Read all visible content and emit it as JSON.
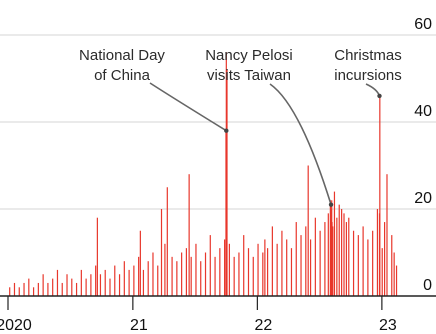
{
  "title": "",
  "chart_data": {
    "type": "bar",
    "title": "",
    "xlabel": "",
    "ylabel": "",
    "x_range": [
      "2020-01-01",
      "2023-03-01"
    ],
    "ylim": [
      0,
      60
    ],
    "y_ticks": [
      0,
      20,
      40,
      60
    ],
    "x_ticks": [
      {
        "label": "2020",
        "date": "2020-01-01"
      },
      {
        "label": "21",
        "date": "2021-01-01"
      },
      {
        "label": "22",
        "date": "2022-01-01"
      },
      {
        "label": "23",
        "date": "2023-01-01"
      }
    ],
    "grid": true,
    "colors": {
      "bar": "#e8372c",
      "grid": "#d4d4d4",
      "axis": "#222222",
      "annotation": "#666666"
    },
    "series": [
      {
        "x": [
          "2020-01-06",
          "2020-01-20",
          "2020-02-03",
          "2020-02-17",
          "2020-03-02",
          "2020-03-16",
          "2020-03-30",
          "2020-04-13",
          "2020-04-27",
          "2020-05-11",
          "2020-05-25",
          "2020-06-08",
          "2020-06-22",
          "2020-07-06",
          "2020-07-20",
          "2020-08-03",
          "2020-08-17",
          "2020-08-31",
          "2020-09-14",
          "2020-09-19",
          "2020-09-28",
          "2020-10-12",
          "2020-10-26",
          "2020-11-09",
          "2020-11-23",
          "2020-12-07",
          "2020-12-21",
          "2021-01-04",
          "2021-01-18",
          "2021-01-23",
          "2021-02-01",
          "2021-02-15",
          "2021-03-01",
          "2021-03-15",
          "2021-03-26",
          "2021-04-05",
          "2021-04-12",
          "2021-04-26",
          "2021-05-10",
          "2021-05-24",
          "2021-06-07",
          "2021-06-15",
          "2021-06-21",
          "2021-07-05",
          "2021-07-19",
          "2021-08-02",
          "2021-08-16",
          "2021-08-30",
          "2021-09-13",
          "2021-09-27",
          "2021-10-01",
          "2021-10-02",
          "2021-10-03",
          "2021-10-04",
          "2021-10-11",
          "2021-10-25",
          "2021-11-08",
          "2021-11-22",
          "2021-12-06",
          "2021-12-20",
          "2022-01-03",
          "2022-01-17",
          "2022-01-23",
          "2022-01-31",
          "2022-02-14",
          "2022-02-28",
          "2022-03-14",
          "2022-03-28",
          "2022-04-11",
          "2022-04-25",
          "2022-05-09",
          "2022-05-23",
          "2022-05-30",
          "2022-06-06",
          "2022-06-20",
          "2022-07-04",
          "2022-07-18",
          "2022-07-28",
          "2022-08-03",
          "2022-08-04",
          "2022-08-05",
          "2022-08-06",
          "2022-08-07",
          "2022-08-08",
          "2022-08-10",
          "2022-08-15",
          "2022-08-22",
          "2022-08-29",
          "2022-09-05",
          "2022-09-12",
          "2022-09-19",
          "2022-09-26",
          "2022-10-10",
          "2022-10-24",
          "2022-11-07",
          "2022-11-21",
          "2022-12-05",
          "2022-12-19",
          "2022-12-25",
          "2022-12-26",
          "2023-01-02",
          "2023-01-09",
          "2023-01-16",
          "2023-01-30",
          "2023-02-06",
          "2023-02-13"
        ],
        "values": [
          2,
          3,
          2,
          3,
          4,
          2,
          3,
          5,
          3,
          4,
          6,
          3,
          5,
          4,
          3,
          6,
          4,
          5,
          7,
          18,
          5,
          6,
          4,
          7,
          5,
          8,
          6,
          7,
          9,
          15,
          6,
          8,
          10,
          7,
          20,
          12,
          25,
          9,
          8,
          10,
          11,
          28,
          9,
          12,
          8,
          10,
          14,
          9,
          11,
          13,
          38,
          56,
          25,
          52,
          12,
          9,
          10,
          14,
          11,
          9,
          12,
          10,
          13,
          11,
          16,
          12,
          15,
          13,
          11,
          17,
          14,
          16,
          30,
          13,
          18,
          15,
          17,
          19,
          22,
          21,
          20,
          18,
          22,
          17,
          16,
          24,
          18,
          21,
          20,
          19,
          17,
          18,
          15,
          14,
          16,
          13,
          15,
          20,
          19,
          46,
          11,
          17,
          28,
          14,
          10,
          7
        ]
      }
    ],
    "annotations": [
      {
        "text": [
          "National Day",
          "of China"
        ],
        "x": "2021-10-02",
        "y": 38
      },
      {
        "text": [
          "Nancy Pelosi",
          "visits Taiwan"
        ],
        "x": "2022-08-05",
        "y": 21
      },
      {
        "text": [
          "Christmas",
          "incursions"
        ],
        "x": "2022-12-25",
        "y": 46
      }
    ]
  }
}
